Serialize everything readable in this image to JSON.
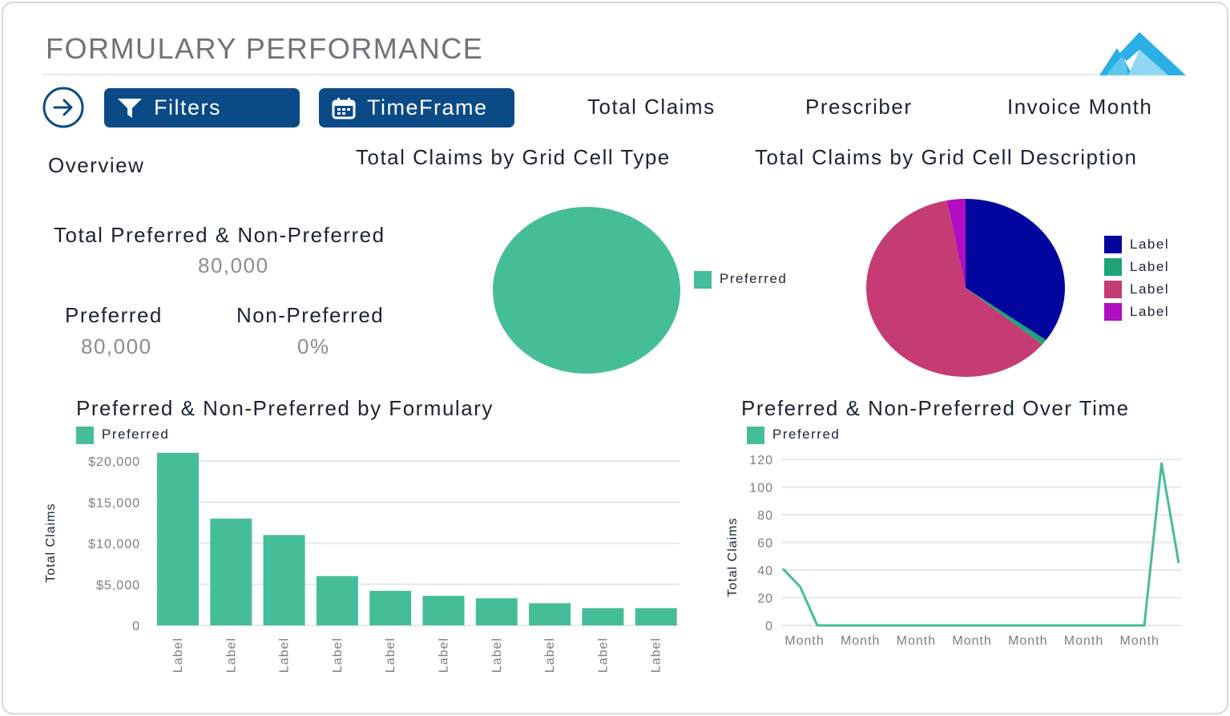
{
  "header": {
    "title": "FORMULARY PERFORMANCE",
    "filters_label": "Filters",
    "timeframe_label": "TimeFrame",
    "links": [
      "Total Claims",
      "Prescriber",
      "Invoice Month"
    ]
  },
  "overview": {
    "title": "Overview",
    "total_label": "Total Preferred & Non-Preferred",
    "total_value": "80,000",
    "preferred_label": "Preferred",
    "preferred_value": "80,000",
    "nonpreferred_label": "Non-Preferred",
    "nonpreferred_value": "0%"
  },
  "colors": {
    "accent": "#0a4a86",
    "teal": "#46bd99",
    "navy": "#02069e",
    "green": "#1ea37a",
    "pink": "#c53b73",
    "magenta": "#b00ec0",
    "logo": "#2ab0e4"
  },
  "icons": {
    "nav": "arrow-right-circle-icon",
    "filter": "filter-icon",
    "calendar": "calendar-icon",
    "logo": "mountain-logo-icon"
  },
  "chart_data": [
    {
      "type": "pie",
      "title": "Total Claims by Grid Cell Type",
      "slices": [
        {
          "label": "Preferred",
          "value": 100,
          "color": "#46bd99"
        }
      ],
      "legend": "right"
    },
    {
      "type": "pie",
      "title": "Total Claims by Grid Cell Description",
      "slices": [
        {
          "label": "Label",
          "value": 35,
          "color": "#02069e"
        },
        {
          "label": "Label",
          "value": 1,
          "color": "#1ea37a"
        },
        {
          "label": "Label",
          "value": 61,
          "color": "#c53b73"
        },
        {
          "label": "Label",
          "value": 3,
          "color": "#b00ec0"
        }
      ],
      "legend": "right"
    },
    {
      "type": "bar",
      "title": "Preferred & Non-Preferred by Formulary",
      "series": [
        {
          "name": "Preferred",
          "values": [
            21000,
            13000,
            11000,
            6000,
            4200,
            3600,
            3300,
            2700,
            2100,
            2100
          ]
        }
      ],
      "categories": [
        "Label",
        "Label",
        "Label",
        "Label",
        "Label",
        "Label",
        "Label",
        "Label",
        "Label",
        "Label"
      ],
      "ylabel": "Total Claims",
      "yticks": [
        "0",
        "$5,000",
        "$10,000",
        "$15,000",
        "$20,000"
      ],
      "ylim": [
        0,
        20000
      ],
      "grid": true,
      "legend": "top-left"
    },
    {
      "type": "line",
      "title": "Preferred & Non-Preferred Over Time",
      "series": [
        {
          "name": "Preferred",
          "values": [
            41,
            28,
            0,
            0,
            0,
            0,
            0,
            0,
            0,
            0,
            0,
            0,
            0,
            0,
            0,
            0,
            0,
            0,
            0,
            0,
            0,
            0,
            117,
            45
          ]
        }
      ],
      "xticks": [
        "Month",
        "Month",
        "Month",
        "Month",
        "Month",
        "Month",
        "Month"
      ],
      "ylabel": "Total Claims",
      "yticks": [
        "0",
        "20",
        "40",
        "60",
        "80",
        "100",
        "120"
      ],
      "ylim": [
        0,
        120
      ],
      "grid": true,
      "legend": "top-left"
    }
  ]
}
